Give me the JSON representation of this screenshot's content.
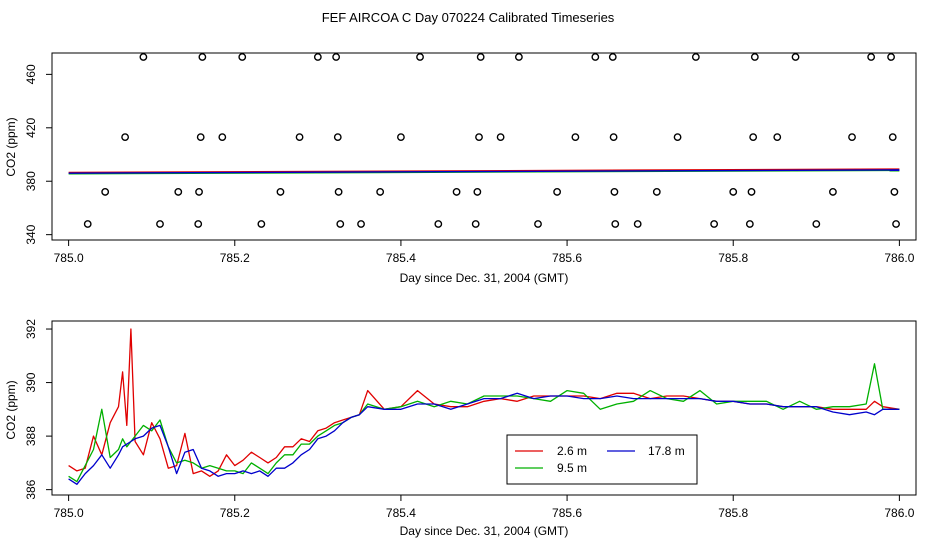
{
  "figure": {
    "title": "FEF AIRCOA C  Day 070224  Calibrated Timeseries"
  },
  "colors": {
    "series_2_6": "#e00000",
    "series_9_5": "#00b000",
    "series_17_8": "#0000cc",
    "axis": "#000000",
    "background": "#ffffff"
  },
  "chart_data": [
    {
      "type": "scatter",
      "title": "",
      "xlabel": "Day since Dec. 31, 2004 (GMT)",
      "ylabel": "CO2 (ppm)",
      "xlim": [
        784.98,
        786.02
      ],
      "ylim": [
        336,
        476
      ],
      "xticks": [
        785.0,
        785.2,
        785.4,
        785.6,
        785.8,
        786.0
      ],
      "xtick_labels": [
        "785.0",
        "785.2",
        "785.4",
        "785.6",
        "785.8",
        "786.0"
      ],
      "yticks": [
        340,
        380,
        420,
        460
      ],
      "ytick_labels": [
        "340",
        "380",
        "420",
        "460"
      ],
      "baseline": {
        "x": [
          785.0,
          786.0
        ],
        "values": [
          386.0,
          388.5
        ]
      },
      "points": [
        {
          "x": 785.023,
          "y": 348
        },
        {
          "x": 785.044,
          "y": 372
        },
        {
          "x": 785.068,
          "y": 413
        },
        {
          "x": 785.09,
          "y": 473
        },
        {
          "x": 785.11,
          "y": 348
        },
        {
          "x": 785.132,
          "y": 372
        },
        {
          "x": 785.156,
          "y": 348
        },
        {
          "x": 785.157,
          "y": 372
        },
        {
          "x": 785.159,
          "y": 413
        },
        {
          "x": 785.161,
          "y": 473
        },
        {
          "x": 785.185,
          "y": 413
        },
        {
          "x": 785.209,
          "y": 473
        },
        {
          "x": 785.232,
          "y": 348
        },
        {
          "x": 785.255,
          "y": 372
        },
        {
          "x": 785.278,
          "y": 413
        },
        {
          "x": 785.3,
          "y": 473
        },
        {
          "x": 785.322,
          "y": 473
        },
        {
          "x": 785.324,
          "y": 413
        },
        {
          "x": 785.325,
          "y": 372
        },
        {
          "x": 785.327,
          "y": 348
        },
        {
          "x": 785.352,
          "y": 348
        },
        {
          "x": 785.375,
          "y": 372
        },
        {
          "x": 785.4,
          "y": 413
        },
        {
          "x": 785.423,
          "y": 473
        },
        {
          "x": 785.445,
          "y": 348
        },
        {
          "x": 785.467,
          "y": 372
        },
        {
          "x": 785.49,
          "y": 348
        },
        {
          "x": 785.492,
          "y": 372
        },
        {
          "x": 785.494,
          "y": 413
        },
        {
          "x": 785.496,
          "y": 473
        },
        {
          "x": 785.52,
          "y": 413
        },
        {
          "x": 785.542,
          "y": 473
        },
        {
          "x": 785.565,
          "y": 348
        },
        {
          "x": 785.588,
          "y": 372
        },
        {
          "x": 785.61,
          "y": 413
        },
        {
          "x": 785.634,
          "y": 473
        },
        {
          "x": 785.655,
          "y": 473
        },
        {
          "x": 785.656,
          "y": 413
        },
        {
          "x": 785.657,
          "y": 372
        },
        {
          "x": 785.658,
          "y": 348
        },
        {
          "x": 785.685,
          "y": 348
        },
        {
          "x": 785.708,
          "y": 372
        },
        {
          "x": 785.733,
          "y": 413
        },
        {
          "x": 785.755,
          "y": 473
        },
        {
          "x": 785.777,
          "y": 348
        },
        {
          "x": 785.8,
          "y": 372
        },
        {
          "x": 785.82,
          "y": 348
        },
        {
          "x": 785.822,
          "y": 372
        },
        {
          "x": 785.824,
          "y": 413
        },
        {
          "x": 785.826,
          "y": 473
        },
        {
          "x": 785.853,
          "y": 413
        },
        {
          "x": 785.875,
          "y": 473
        },
        {
          "x": 785.9,
          "y": 348
        },
        {
          "x": 785.92,
          "y": 372
        },
        {
          "x": 785.943,
          "y": 413
        },
        {
          "x": 785.966,
          "y": 473
        },
        {
          "x": 785.99,
          "y": 473
        },
        {
          "x": 785.992,
          "y": 413
        },
        {
          "x": 785.994,
          "y": 372
        },
        {
          "x": 785.996,
          "y": 348
        }
      ]
    },
    {
      "type": "line",
      "title": "",
      "xlabel": "Day since Dec. 31, 2004 (GMT)",
      "ylabel": "CO2 (ppm)",
      "xlim": [
        784.98,
        786.02
      ],
      "ylim": [
        385.8,
        392.3
      ],
      "xticks": [
        785.0,
        785.2,
        785.4,
        785.6,
        785.8,
        786.0
      ],
      "xtick_labels": [
        "785.0",
        "785.2",
        "785.4",
        "785.6",
        "785.8",
        "786.0"
      ],
      "yticks": [
        386,
        388,
        390,
        392
      ],
      "ytick_labels": [
        "386",
        "388",
        "390",
        "392"
      ],
      "legend": {
        "placement": "bottom-center",
        "ncol": 2
      },
      "x": [
        785.0,
        785.01,
        785.02,
        785.03,
        785.04,
        785.05,
        785.06,
        785.065,
        785.07,
        785.075,
        785.08,
        785.09,
        785.1,
        785.11,
        785.12,
        785.13,
        785.14,
        785.15,
        785.16,
        785.17,
        785.18,
        785.19,
        785.2,
        785.21,
        785.22,
        785.23,
        785.24,
        785.25,
        785.26,
        785.27,
        785.28,
        785.29,
        785.3,
        785.31,
        785.32,
        785.33,
        785.34,
        785.35,
        785.36,
        785.38,
        785.4,
        785.42,
        785.44,
        785.46,
        785.48,
        785.5,
        785.52,
        785.54,
        785.56,
        785.58,
        785.6,
        785.62,
        785.64,
        785.66,
        785.68,
        785.7,
        785.72,
        785.74,
        785.76,
        785.78,
        785.8,
        785.82,
        785.84,
        785.86,
        785.88,
        785.9,
        785.92,
        785.94,
        785.96,
        785.97,
        785.98,
        786.0
      ],
      "series": [
        {
          "name": "2.6 m",
          "values": [
            386.9,
            386.7,
            386.8,
            388.0,
            387.3,
            388.5,
            389.1,
            390.4,
            388.4,
            392.0,
            387.8,
            387.3,
            388.5,
            387.9,
            386.8,
            386.9,
            388.1,
            386.6,
            386.7,
            386.5,
            386.7,
            387.3,
            386.9,
            387.1,
            387.4,
            387.2,
            387.0,
            387.2,
            387.6,
            387.6,
            387.9,
            387.8,
            388.2,
            388.3,
            388.5,
            388.6,
            388.7,
            388.8,
            389.7,
            389.0,
            389.1,
            389.7,
            389.2,
            389.1,
            389.1,
            389.3,
            389.4,
            389.3,
            389.5,
            389.5,
            389.5,
            389.5,
            389.4,
            389.6,
            389.6,
            389.4,
            389.5,
            389.5,
            389.4,
            389.3,
            389.3,
            389.2,
            389.2,
            389.1,
            389.1,
            389.1,
            389.0,
            389.0,
            389.0,
            389.3,
            389.1,
            389.0
          ]
        },
        {
          "name": "9.5 m",
          "values": [
            386.5,
            386.3,
            386.9,
            387.5,
            389.0,
            387.2,
            387.5,
            387.9,
            387.6,
            387.8,
            388.0,
            388.4,
            388.2,
            388.6,
            387.6,
            387.0,
            387.1,
            387.0,
            386.8,
            386.9,
            386.8,
            386.7,
            386.7,
            386.6,
            387.0,
            386.8,
            386.6,
            387.0,
            387.3,
            387.3,
            387.7,
            387.7,
            388.0,
            388.2,
            388.4,
            388.5,
            388.7,
            388.8,
            389.2,
            389.0,
            389.1,
            389.3,
            389.1,
            389.3,
            389.2,
            389.5,
            389.5,
            389.5,
            389.4,
            389.3,
            389.7,
            389.6,
            389.0,
            389.2,
            389.3,
            389.7,
            389.4,
            389.3,
            389.7,
            389.2,
            389.3,
            389.3,
            389.3,
            389.0,
            389.3,
            389.0,
            389.1,
            389.1,
            389.2,
            390.7,
            389.0,
            389.0
          ]
        },
        {
          "name": "17.8 m",
          "values": [
            386.4,
            386.2,
            386.6,
            386.9,
            387.3,
            386.8,
            387.3,
            387.6,
            387.7,
            387.8,
            387.9,
            388.0,
            388.3,
            388.4,
            387.6,
            386.6,
            387.4,
            387.5,
            386.8,
            386.7,
            386.5,
            386.6,
            386.6,
            386.7,
            386.6,
            386.7,
            386.5,
            386.8,
            386.8,
            387.0,
            387.3,
            387.5,
            387.9,
            388.0,
            388.2,
            388.5,
            388.7,
            388.8,
            389.1,
            389.0,
            389.0,
            389.2,
            389.2,
            389.0,
            389.2,
            389.4,
            389.4,
            389.6,
            389.4,
            389.5,
            389.5,
            389.4,
            389.4,
            389.5,
            389.4,
            389.4,
            389.4,
            389.4,
            389.4,
            389.3,
            389.3,
            389.2,
            389.2,
            389.1,
            389.1,
            389.1,
            388.9,
            388.8,
            388.9,
            388.8,
            389.0,
            389.0
          ]
        }
      ]
    }
  ]
}
